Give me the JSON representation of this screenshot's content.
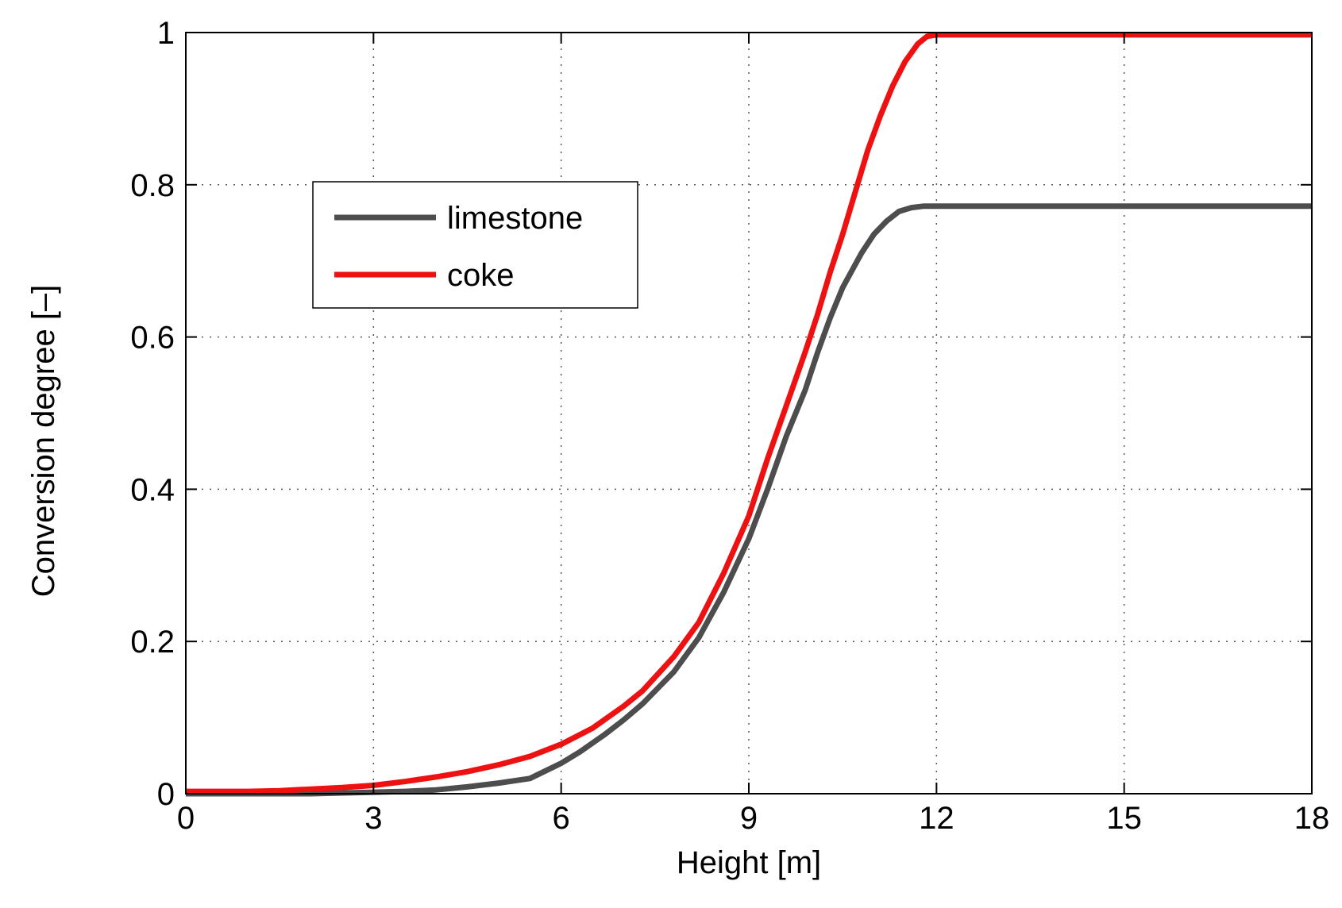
{
  "chart_data": {
    "type": "line",
    "title": "",
    "xlabel": "Height [m]",
    "ylabel": "Conversion degree [–]",
    "xlim": [
      0,
      18
    ],
    "ylim": [
      0,
      1
    ],
    "xticks": [
      0,
      3,
      6,
      9,
      12,
      15,
      18
    ],
    "yticks": [
      0,
      0.2,
      0.4,
      0.6,
      0.8,
      1
    ],
    "xtick_labels": [
      "0",
      "3",
      "6",
      "9",
      "12",
      "15",
      "18"
    ],
    "ytick_labels": [
      "0",
      "0.2",
      "0.4",
      "0.6",
      "0.8",
      "1"
    ],
    "grid": true,
    "legend_position": "upper-left",
    "series": [
      {
        "name": "limestone",
        "color": "#4d4d4d",
        "x": [
          0,
          1,
          2,
          3,
          3.5,
          4,
          4.5,
          5,
          5.5,
          5.8,
          6,
          6.3,
          6.7,
          7,
          7.3,
          7.8,
          8.2,
          8.6,
          9,
          9.3,
          9.6,
          9.9,
          10.1,
          10.3,
          10.5,
          10.8,
          11,
          11.2,
          11.4,
          11.6,
          11.8,
          12,
          15,
          18
        ],
        "y": [
          0,
          0,
          0,
          0.002,
          0.003,
          0.005,
          0.009,
          0.014,
          0.02,
          0.032,
          0.04,
          0.055,
          0.078,
          0.097,
          0.118,
          0.16,
          0.205,
          0.265,
          0.335,
          0.4,
          0.47,
          0.53,
          0.58,
          0.625,
          0.665,
          0.71,
          0.735,
          0.752,
          0.765,
          0.77,
          0.772,
          0.772,
          0.772,
          0.772
        ]
      },
      {
        "name": "coke",
        "color": "#ee1111",
        "x": [
          0,
          1,
          1.5,
          2,
          2.5,
          3,
          3.5,
          4,
          4.5,
          5,
          5.5,
          6,
          6.5,
          7,
          7.3,
          7.8,
          8.2,
          8.6,
          9,
          9.3,
          9.6,
          9.9,
          10.1,
          10.3,
          10.5,
          10.7,
          10.9,
          11.1,
          11.3,
          11.5,
          11.7,
          11.85,
          12,
          15,
          18
        ],
        "y": [
          0.003,
          0.003,
          0.004,
          0.006,
          0.008,
          0.011,
          0.016,
          0.022,
          0.029,
          0.038,
          0.049,
          0.065,
          0.086,
          0.115,
          0.135,
          0.18,
          0.225,
          0.29,
          0.365,
          0.44,
          0.51,
          0.58,
          0.63,
          0.685,
          0.735,
          0.79,
          0.845,
          0.89,
          0.93,
          0.962,
          0.985,
          0.995,
          0.997,
          0.997,
          0.997
        ]
      }
    ]
  }
}
